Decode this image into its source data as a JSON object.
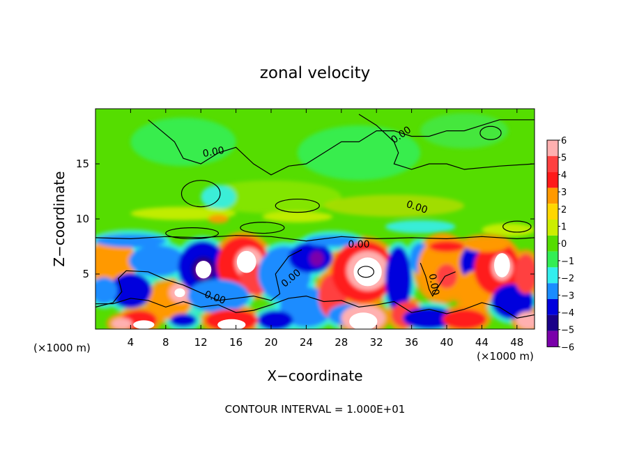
{
  "chart_data": {
    "type": "heatmap",
    "title": "zonal velocity",
    "xlabel": "X−coordinate",
    "ylabel": "Z−coordinate",
    "x_unit_left": "(×1000 m)",
    "x_unit_right": "(×1000 m)",
    "xlim": [
      0,
      50
    ],
    "ylim": [
      0,
      20
    ],
    "x_ticks": [
      4,
      8,
      12,
      16,
      20,
      24,
      28,
      32,
      36,
      40,
      44,
      48
    ],
    "y_ticks": [
      5,
      10,
      15
    ],
    "colorbar": {
      "levels": [
        6,
        5,
        4,
        3,
        2,
        1,
        0,
        -1,
        -2,
        -3,
        -4,
        -5,
        -6
      ],
      "labels": [
        "6",
        "5",
        "4",
        "3",
        "2",
        "1",
        "0",
        "−1",
        "−2",
        "−3",
        "−4",
        "−5",
        "−6"
      ],
      "colors": [
        "#ffb0b0",
        "#ff4040",
        "#ff1a1a",
        "#ff9900",
        "#ffd700",
        "#ccee00",
        "#55dd00",
        "#33ee55",
        "#33eeee",
        "#1a8cff",
        "#0000dd",
        "#1a0088",
        "#7a00aa"
      ]
    },
    "contour_labels": [
      "0.00",
      "0.00",
      "0.00",
      "0.00",
      "0.00",
      "0.00",
      "0.00"
    ],
    "footer": "CONTOUR INTERVAL = 1.000E+01"
  }
}
